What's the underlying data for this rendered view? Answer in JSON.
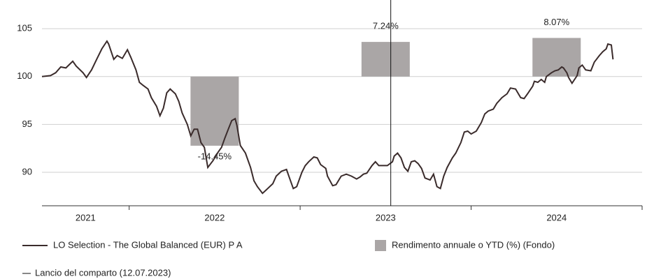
{
  "chart_data": {
    "type": "line-bar",
    "xlim": [
      2021.49,
      2025.0
    ],
    "xticks": [
      2022,
      2023,
      2024,
      2025
    ],
    "categories": [
      "2021",
      "2022",
      "2023",
      "2024"
    ],
    "ylim": [
      86.5,
      108
    ],
    "yticks": [
      90,
      95,
      100,
      105
    ],
    "y2lim": [
      -27,
      16
    ],
    "grid": true,
    "series": [
      {
        "name": "LO Selection - The Global Balanced (EUR) P A",
        "type": "line",
        "color": "#3a2b2b",
        "x": [
          2021.49,
          2021.54,
          2021.57,
          2021.6,
          2021.63,
          2021.67,
          2021.69,
          2021.73,
          2021.75,
          2021.78,
          2021.81,
          2021.84,
          2021.87,
          2021.88,
          2021.91,
          2021.93,
          2021.96,
          2021.99,
          2022.01,
          2022.04,
          2022.06,
          2022.08,
          2022.11,
          2022.13,
          2022.16,
          2022.18,
          2022.2,
          2022.22,
          2022.24,
          2022.27,
          2022.29,
          2022.31,
          2022.34,
          2022.36,
          2022.38,
          2022.4,
          2022.42,
          2022.44,
          2022.46,
          2022.49,
          2022.52,
          2022.54,
          2022.56,
          2022.58,
          2022.6,
          2022.62,
          2022.63,
          2022.65,
          2022.68,
          2022.71,
          2022.73,
          2022.75,
          2022.78,
          2022.81,
          2022.84,
          2022.86,
          2022.89,
          2022.92,
          2022.94,
          2022.96,
          2022.98,
          2023.01,
          2023.03,
          2023.05,
          2023.08,
          2023.1,
          2023.12,
          2023.15,
          2023.16,
          2023.19,
          2023.21,
          2023.24,
          2023.27,
          2023.3,
          2023.33,
          2023.35,
          2023.37,
          2023.39,
          2023.42,
          2023.44,
          2023.46,
          2023.49,
          2023.51,
          2023.54,
          2023.55,
          2023.57,
          2023.59,
          2023.61,
          2023.63,
          2023.65,
          2023.67,
          2023.69,
          2023.71,
          2023.73,
          2023.76,
          2023.78,
          2023.8,
          2023.82,
          2023.84,
          2023.86,
          2023.89,
          2023.91,
          2023.94,
          2023.96,
          2023.98,
          2024.0,
          2024.03,
          2024.06,
          2024.08,
          2024.1,
          2024.13,
          2024.15,
          2024.18,
          2024.21,
          2024.23,
          2024.26,
          2024.29,
          2024.31,
          2024.33,
          2024.36,
          2024.37,
          2024.39,
          2024.41,
          2024.43,
          2024.44,
          2024.47,
          2024.49,
          2024.51,
          2024.53,
          2024.54,
          2024.56,
          2024.57,
          2024.59,
          2024.62,
          2024.63,
          2024.65,
          2024.67,
          2024.7,
          2024.72,
          2024.75,
          2024.77,
          2024.79,
          2024.8,
          2024.82,
          2024.83
        ],
        "values": [
          100.0,
          100.1,
          100.4,
          101.0,
          100.9,
          101.6,
          101.1,
          100.4,
          99.9,
          100.7,
          101.8,
          102.9,
          103.7,
          103.4,
          101.8,
          102.2,
          101.9,
          102.8,
          102.0,
          100.7,
          99.4,
          99.1,
          98.7,
          97.8,
          96.9,
          95.9,
          96.7,
          98.3,
          98.7,
          98.2,
          97.4,
          96.2,
          95.0,
          93.8,
          94.5,
          94.5,
          93.1,
          92.6,
          90.5,
          91.2,
          92.1,
          92.6,
          93.6,
          94.5,
          95.4,
          95.6,
          94.9,
          92.8,
          92.0,
          90.5,
          89.1,
          88.5,
          87.8,
          88.3,
          88.8,
          89.6,
          90.1,
          90.3,
          89.3,
          88.3,
          88.5,
          90.0,
          90.7,
          91.1,
          91.6,
          91.5,
          90.8,
          90.4,
          89.6,
          88.6,
          88.7,
          89.6,
          89.8,
          89.6,
          89.3,
          89.5,
          89.8,
          89.9,
          90.7,
          91.1,
          90.7,
          90.7,
          90.7,
          91.1,
          91.7,
          92.0,
          91.5,
          90.5,
          90.1,
          91.1,
          91.2,
          90.9,
          90.4,
          89.4,
          89.2,
          89.8,
          88.5,
          88.3,
          89.6,
          90.5,
          91.5,
          92.0,
          93.1,
          94.2,
          94.3,
          94.0,
          94.3,
          95.2,
          96.1,
          96.4,
          96.6,
          97.2,
          97.8,
          98.2,
          98.8,
          98.7,
          97.8,
          97.7,
          98.2,
          99.0,
          99.5,
          99.4,
          99.7,
          99.4,
          100.0,
          100.4,
          100.6,
          100.7,
          101.0,
          100.9,
          100.4,
          99.9,
          99.3,
          100.1,
          100.9,
          101.2,
          100.7,
          100.6,
          101.5,
          102.2,
          102.6,
          102.9,
          103.4,
          103.3,
          101.8
        ]
      },
      {
        "name": "Rendimento annuale o YTD (%) (Fondo)",
        "type": "bar",
        "axis": "y2",
        "color": "#aaa6a6",
        "x": [
          2022.5,
          2023.5,
          2024.5
        ],
        "values": [
          -14.45,
          7.24,
          8.07
        ],
        "value_labels": [
          "-14.45%",
          "7.24%",
          "8.07%"
        ]
      }
    ],
    "launch_line": {
      "x": 2023.53,
      "label": "Lancio del comparto (12.07.2023)",
      "color": "#111111"
    }
  }
}
